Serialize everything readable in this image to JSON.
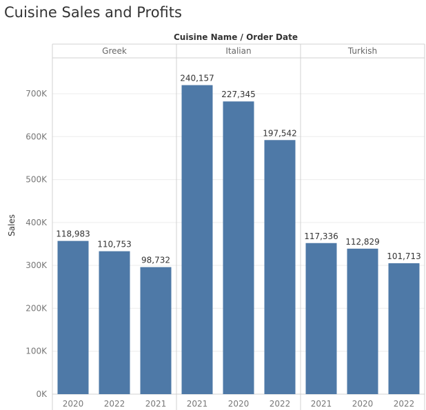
{
  "title": "Cuisine Sales and Profits",
  "chart_data": {
    "type": "bar",
    "title": "Cuisine Sales and Profits",
    "header": "Cuisine Name  /  Order Date",
    "ylabel": "Sales",
    "ylim": [
      0,
      780000
    ],
    "yticks": [
      {
        "v": 0,
        "label": "0K"
      },
      {
        "v": 100000,
        "label": "100K"
      },
      {
        "v": 200000,
        "label": "200K"
      },
      {
        "v": 300000,
        "label": "300K"
      },
      {
        "v": 400000,
        "label": "400K"
      },
      {
        "v": 500000,
        "label": "500K"
      },
      {
        "v": 600000,
        "label": "600K"
      },
      {
        "v": 700000,
        "label": "700K"
      }
    ],
    "grid": true,
    "color": "#4e79a7",
    "panes": [
      {
        "name": "Greek",
        "bars": [
          {
            "x": "2020",
            "value": 357000,
            "label": "118,983"
          },
          {
            "x": "2022",
            "value": 333000,
            "label": "110,753"
          },
          {
            "x": "2021",
            "value": 296000,
            "label": "98,732"
          }
        ]
      },
      {
        "name": "Italian",
        "bars": [
          {
            "x": "2021",
            "value": 720000,
            "label": "240,157"
          },
          {
            "x": "2020",
            "value": 682000,
            "label": "227,345"
          },
          {
            "x": "2022",
            "value": 592000,
            "label": "197,542"
          }
        ]
      },
      {
        "name": "Turkish",
        "bars": [
          {
            "x": "2021",
            "value": 352000,
            "label": "117,336"
          },
          {
            "x": "2020",
            "value": 339000,
            "label": "112,829"
          },
          {
            "x": "2022",
            "value": 305000,
            "label": "101,713"
          }
        ]
      }
    ]
  }
}
